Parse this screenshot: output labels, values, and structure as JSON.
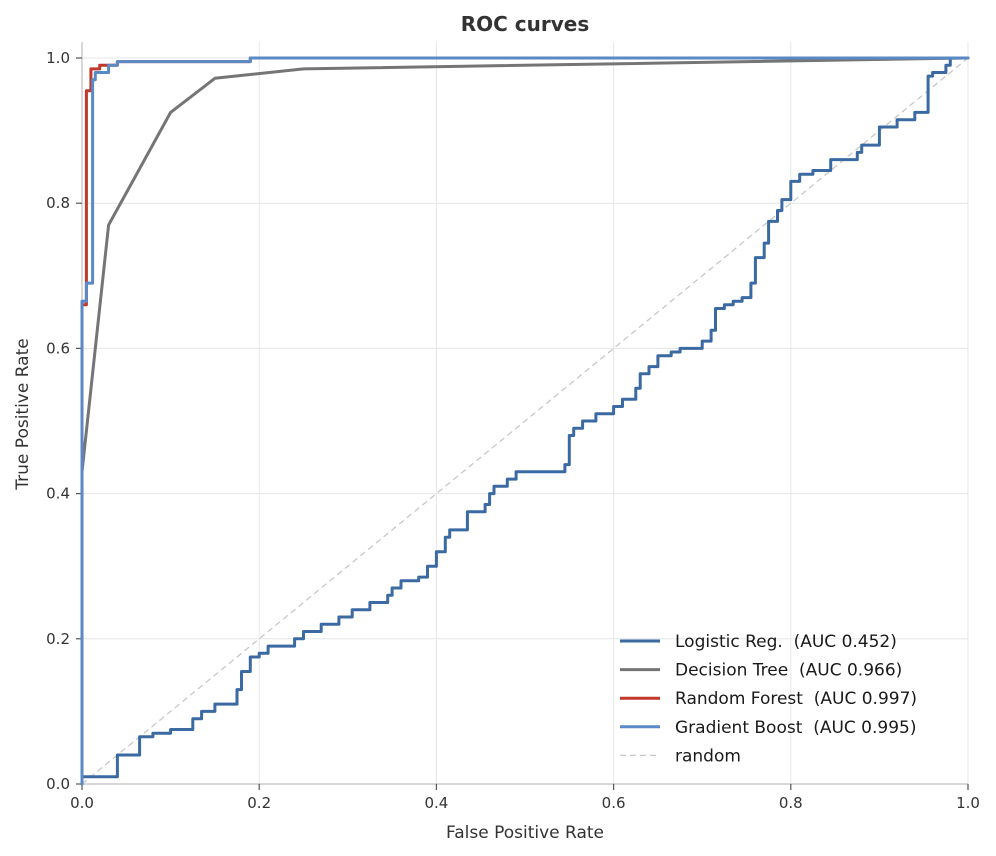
{
  "chart_data": {
    "type": "line",
    "title": "ROC curves",
    "xlabel": "False Positive Rate",
    "ylabel": "True Positive Rate",
    "xlim": [
      0,
      1
    ],
    "ylim": [
      0,
      1
    ],
    "x_ticks": [
      "0.0",
      "0.2",
      "0.4",
      "0.6",
      "0.8",
      "1.0"
    ],
    "y_ticks": [
      "0.0",
      "0.2",
      "0.4",
      "0.6",
      "0.8",
      "1.0"
    ],
    "grid": true,
    "legend_position": "bottom-right",
    "series": [
      {
        "name": "Logistic Reg.  (AUC 0.452)",
        "color": "#3b6aa3",
        "style": "step",
        "points": [
          [
            0,
            0
          ],
          [
            0,
            0.01
          ],
          [
            0.04,
            0.01
          ],
          [
            0.04,
            0.04
          ],
          [
            0.065,
            0.04
          ],
          [
            0.065,
            0.065
          ],
          [
            0.08,
            0.065
          ],
          [
            0.08,
            0.07
          ],
          [
            0.1,
            0.07
          ],
          [
            0.1,
            0.075
          ],
          [
            0.125,
            0.075
          ],
          [
            0.125,
            0.09
          ],
          [
            0.135,
            0.09
          ],
          [
            0.135,
            0.1
          ],
          [
            0.15,
            0.1
          ],
          [
            0.15,
            0.11
          ],
          [
            0.175,
            0.11
          ],
          [
            0.175,
            0.13
          ],
          [
            0.18,
            0.13
          ],
          [
            0.18,
            0.155
          ],
          [
            0.19,
            0.155
          ],
          [
            0.19,
            0.175
          ],
          [
            0.2,
            0.175
          ],
          [
            0.2,
            0.18
          ],
          [
            0.21,
            0.18
          ],
          [
            0.21,
            0.19
          ],
          [
            0.24,
            0.19
          ],
          [
            0.24,
            0.2
          ],
          [
            0.25,
            0.2
          ],
          [
            0.25,
            0.21
          ],
          [
            0.27,
            0.21
          ],
          [
            0.27,
            0.22
          ],
          [
            0.29,
            0.22
          ],
          [
            0.29,
            0.23
          ],
          [
            0.305,
            0.23
          ],
          [
            0.305,
            0.24
          ],
          [
            0.325,
            0.24
          ],
          [
            0.325,
            0.25
          ],
          [
            0.345,
            0.25
          ],
          [
            0.345,
            0.26
          ],
          [
            0.35,
            0.26
          ],
          [
            0.35,
            0.27
          ],
          [
            0.36,
            0.27
          ],
          [
            0.36,
            0.28
          ],
          [
            0.38,
            0.28
          ],
          [
            0.38,
            0.285
          ],
          [
            0.39,
            0.285
          ],
          [
            0.39,
            0.3
          ],
          [
            0.4,
            0.3
          ],
          [
            0.4,
            0.32
          ],
          [
            0.41,
            0.32
          ],
          [
            0.41,
            0.34
          ],
          [
            0.415,
            0.34
          ],
          [
            0.415,
            0.35
          ],
          [
            0.435,
            0.35
          ],
          [
            0.435,
            0.375
          ],
          [
            0.455,
            0.375
          ],
          [
            0.455,
            0.385
          ],
          [
            0.46,
            0.385
          ],
          [
            0.46,
            0.4
          ],
          [
            0.465,
            0.4
          ],
          [
            0.465,
            0.41
          ],
          [
            0.48,
            0.41
          ],
          [
            0.48,
            0.42
          ],
          [
            0.49,
            0.42
          ],
          [
            0.49,
            0.43
          ],
          [
            0.545,
            0.43
          ],
          [
            0.545,
            0.44
          ],
          [
            0.55,
            0.44
          ],
          [
            0.55,
            0.48
          ],
          [
            0.555,
            0.48
          ],
          [
            0.555,
            0.49
          ],
          [
            0.565,
            0.49
          ],
          [
            0.565,
            0.5
          ],
          [
            0.58,
            0.5
          ],
          [
            0.58,
            0.51
          ],
          [
            0.6,
            0.51
          ],
          [
            0.6,
            0.52
          ],
          [
            0.61,
            0.52
          ],
          [
            0.61,
            0.53
          ],
          [
            0.625,
            0.53
          ],
          [
            0.625,
            0.545
          ],
          [
            0.63,
            0.545
          ],
          [
            0.63,
            0.565
          ],
          [
            0.64,
            0.565
          ],
          [
            0.64,
            0.575
          ],
          [
            0.65,
            0.575
          ],
          [
            0.65,
            0.59
          ],
          [
            0.665,
            0.59
          ],
          [
            0.665,
            0.595
          ],
          [
            0.675,
            0.595
          ],
          [
            0.675,
            0.6
          ],
          [
            0.7,
            0.6
          ],
          [
            0.7,
            0.61
          ],
          [
            0.71,
            0.61
          ],
          [
            0.71,
            0.625
          ],
          [
            0.715,
            0.625
          ],
          [
            0.715,
            0.655
          ],
          [
            0.725,
            0.655
          ],
          [
            0.725,
            0.66
          ],
          [
            0.735,
            0.66
          ],
          [
            0.735,
            0.665
          ],
          [
            0.745,
            0.665
          ],
          [
            0.745,
            0.67
          ],
          [
            0.755,
            0.67
          ],
          [
            0.755,
            0.69
          ],
          [
            0.76,
            0.69
          ],
          [
            0.76,
            0.725
          ],
          [
            0.77,
            0.725
          ],
          [
            0.77,
            0.745
          ],
          [
            0.775,
            0.745
          ],
          [
            0.775,
            0.775
          ],
          [
            0.785,
            0.775
          ],
          [
            0.785,
            0.79
          ],
          [
            0.79,
            0.79
          ],
          [
            0.79,
            0.805
          ],
          [
            0.8,
            0.805
          ],
          [
            0.8,
            0.83
          ],
          [
            0.81,
            0.83
          ],
          [
            0.81,
            0.84
          ],
          [
            0.825,
            0.84
          ],
          [
            0.825,
            0.845
          ],
          [
            0.845,
            0.845
          ],
          [
            0.845,
            0.86
          ],
          [
            0.875,
            0.86
          ],
          [
            0.875,
            0.87
          ],
          [
            0.88,
            0.87
          ],
          [
            0.88,
            0.88
          ],
          [
            0.9,
            0.88
          ],
          [
            0.9,
            0.905
          ],
          [
            0.92,
            0.905
          ],
          [
            0.92,
            0.915
          ],
          [
            0.94,
            0.915
          ],
          [
            0.94,
            0.925
          ],
          [
            0.955,
            0.925
          ],
          [
            0.955,
            0.975
          ],
          [
            0.96,
            0.975
          ],
          [
            0.96,
            0.98
          ],
          [
            0.975,
            0.98
          ],
          [
            0.975,
            0.99
          ],
          [
            0.98,
            0.99
          ],
          [
            0.98,
            1.0
          ],
          [
            1.0,
            1.0
          ]
        ]
      },
      {
        "name": "Decision Tree  (AUC 0.966)",
        "color": "#757575",
        "style": "line",
        "points": [
          [
            0,
            0.43
          ],
          [
            0.03,
            0.77
          ],
          [
            0.1,
            0.925
          ],
          [
            0.15,
            0.972
          ],
          [
            0.25,
            0.985
          ],
          [
            1.0,
            1.0
          ]
        ]
      },
      {
        "name": "Random Forest  (AUC 0.997)",
        "color": "#c0392b",
        "style": "step",
        "points": [
          [
            0,
            0.64
          ],
          [
            0,
            0.66
          ],
          [
            0.005,
            0.66
          ],
          [
            0.005,
            0.955
          ],
          [
            0.01,
            0.955
          ],
          [
            0.01,
            0.985
          ],
          [
            0.02,
            0.985
          ],
          [
            0.02,
            0.99
          ],
          [
            0.04,
            0.99
          ],
          [
            0.04,
            0.995
          ],
          [
            0.19,
            0.995
          ],
          [
            0.19,
            1.0
          ],
          [
            1.0,
            1.0
          ]
        ]
      },
      {
        "name": "Gradient Boost  (AUC 0.995)",
        "color": "#5a8ac6",
        "style": "step",
        "points": [
          [
            0,
            0
          ],
          [
            0,
            0.665
          ],
          [
            0.005,
            0.665
          ],
          [
            0.005,
            0.69
          ],
          [
            0.012,
            0.69
          ],
          [
            0.012,
            0.97
          ],
          [
            0.015,
            0.97
          ],
          [
            0.015,
            0.98
          ],
          [
            0.03,
            0.98
          ],
          [
            0.03,
            0.99
          ],
          [
            0.04,
            0.99
          ],
          [
            0.04,
            0.995
          ],
          [
            0.19,
            0.995
          ],
          [
            0.19,
            1.0
          ],
          [
            1.0,
            1.0
          ]
        ]
      },
      {
        "name": "random",
        "color": "#c8c8c8",
        "style": "dashed",
        "points": [
          [
            0,
            0
          ],
          [
            1,
            1
          ]
        ]
      }
    ]
  }
}
